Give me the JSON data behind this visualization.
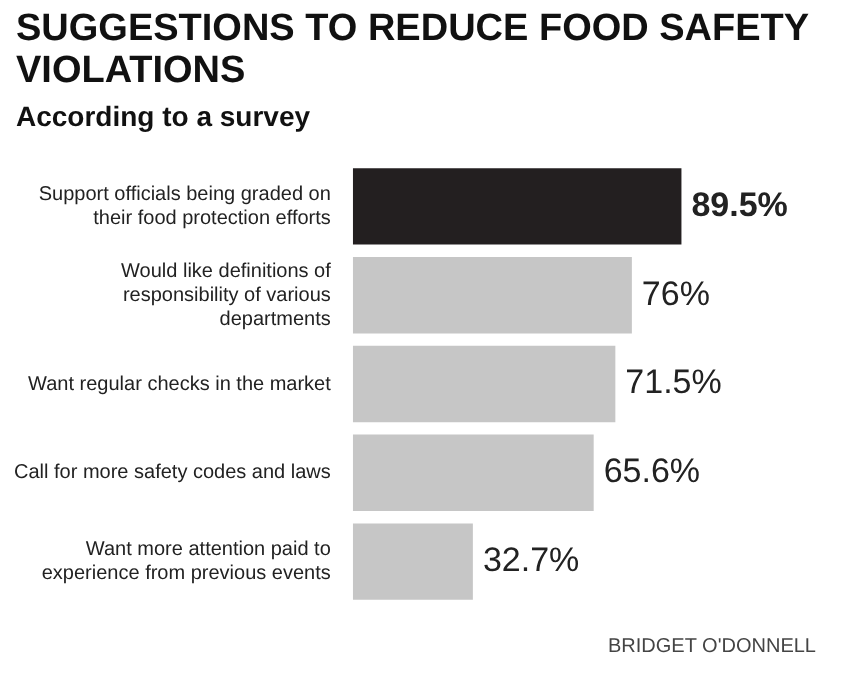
{
  "chart_data": {
    "type": "bar",
    "orientation": "horizontal",
    "title": "SUGGESTIONS TO REDUCE FOOD SAFETY VIOLATIONS",
    "subtitle": "According to a survey",
    "categories": [
      "Support officials being graded on their food protection efforts",
      "Would like definitions of responsibility of various departments",
      "Want regular checks in the market",
      "Call for more safety codes and laws",
      "Want more attention paid to experience from previous events"
    ],
    "values": [
      89.5,
      76,
      71.5,
      65.6,
      32.7
    ],
    "value_labels": [
      "89.5%",
      "76%",
      "71.5%",
      "65.6%",
      "32.7%"
    ],
    "colors": [
      "#231f20",
      "#c6c6c6",
      "#c6c6c6",
      "#c6c6c6",
      "#c6c6c6"
    ],
    "annotations": [
      "BRIDGET O'DONNELL"
    ]
  }
}
